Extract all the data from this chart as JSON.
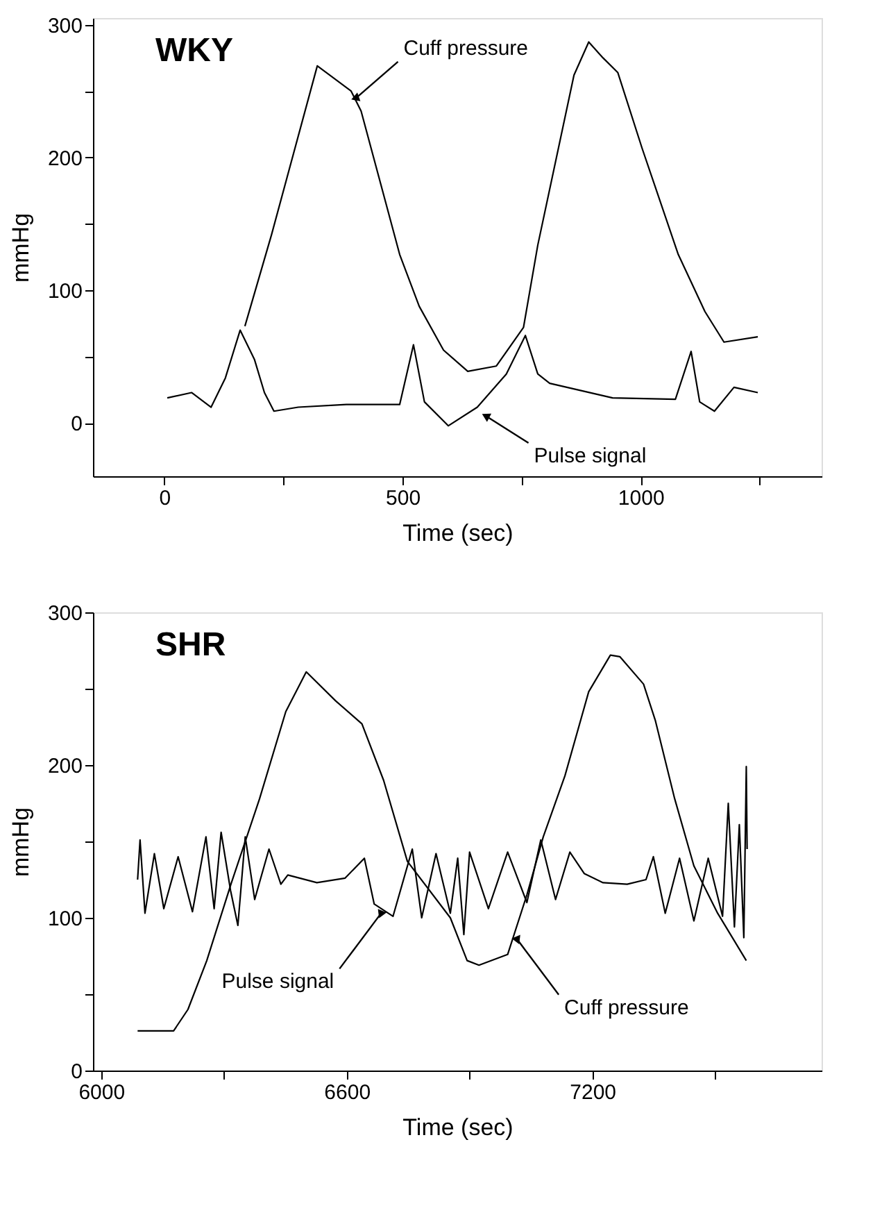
{
  "chart_data": [
    {
      "type": "line",
      "title": "WKY",
      "xlabel": "Time (sec)",
      "ylabel": "mmHg",
      "xlim": [
        -150,
        1380
      ],
      "ylim": [
        -40,
        305
      ],
      "xticks": [
        0,
        {
          "value": 250,
          "label": null
        },
        500,
        {
          "value": 750,
          "label": null
        },
        1000,
        {
          "value": 1250,
          "label": null
        }
      ],
      "yticks": [
        0,
        {
          "value": 50,
          "label": null
        },
        100,
        {
          "value": 150,
          "label": null
        },
        200,
        {
          "value": 250,
          "label": null
        },
        300
      ],
      "series": [
        {
          "color": "#000000",
          "x": [
            169,
            225,
            321,
            392,
            413,
            494,
            535,
            586,
            637,
            697,
            754,
            784,
            860,
            891,
            921,
            952,
            1003,
            1079,
            1135,
            1175,
            1246
          ],
          "values": [
            73,
            142,
            269,
            250,
            235,
            127,
            88,
            55,
            39,
            43,
            72,
            134,
            262,
            287,
            275,
            264,
            207,
            127,
            84,
            61,
            65
          ]
        },
        {
          "color": "#000000",
          "x": [
            6,
            57,
            98,
            128,
            159,
            189,
            210,
            230,
            281,
            382,
            494,
            523,
            546,
            596,
            657,
            718,
            758,
            784,
            809,
            941,
            1073,
            1106,
            1124,
            1155,
            1196,
            1246
          ],
          "values": [
            19,
            23,
            12,
            34,
            70,
            48,
            23,
            9,
            12,
            14,
            14,
            59,
            16,
            -2,
            12,
            37,
            66,
            37,
            30,
            19,
            18,
            54,
            16,
            9,
            27,
            23
          ]
        }
      ],
      "annotations": [
        {
          "text": "Cuff pressure",
          "x": 403,
          "y": 245
        },
        {
          "text": "Pulse signal",
          "x": 677,
          "y": 5
        }
      ]
    },
    {
      "type": "line",
      "title": "SHR",
      "xlabel": "Time (sec)",
      "ylabel": "mmHg",
      "xlim": [
        5980,
        7760
      ],
      "ylim": [
        0,
        300
      ],
      "xticks": [
        6000,
        {
          "value": 6300,
          "label": null
        },
        6600,
        {
          "value": 6900,
          "label": null
        },
        7200,
        {
          "value": 7500,
          "label": null
        }
      ],
      "yticks": [
        0,
        {
          "value": 50,
          "label": null
        },
        100,
        {
          "value": 150,
          "label": null
        },
        200,
        {
          "value": 250,
          "label": null
        },
        300
      ],
      "series": [
        {
          "color": "#000000",
          "x": [
            6089,
            6177,
            6212,
            6258,
            6317,
            6387,
            6451,
            6501,
            6573,
            6637,
            6690,
            6748,
            6853,
            6894,
            6923,
            6993,
            7040,
            7080,
            7133,
            7191,
            7244,
            7267,
            7325,
            7354,
            7401,
            7448,
            7506,
            7576
          ],
          "values": [
            26,
            26,
            40,
            72,
            122,
            178,
            235,
            261,
            242,
            227,
            190,
            137,
            100,
            72,
            69,
            76,
            115,
            153,
            193,
            248,
            272,
            271,
            253,
            229,
            178,
            134,
            103,
            72
          ]
        },
        {
          "color": "#000000",
          "x": [
            6089,
            6095,
            6107,
            6130,
            6153,
            6188,
            6223,
            6256,
            6276,
            6293,
            6316,
            6334,
            6352,
            6375,
            6410,
            6439,
            6456,
            6527,
            6596,
            6643,
            6667,
            6713,
            6760,
            6783,
            6818,
            6853,
            6871,
            6886,
            6900,
            6946,
            6993,
            7040,
            7074,
            7110,
            7145,
            7180,
            7226,
            7285,
            7331,
            7349,
            7378,
            7413,
            7448,
            7483,
            7518,
            7532,
            7547,
            7559,
            7570,
            7576,
            7578
          ],
          "values": [
            125,
            151,
            103,
            142,
            106,
            140,
            104,
            153,
            106,
            156,
            118,
            95,
            153,
            112,
            145,
            122,
            128,
            123,
            126,
            139,
            109,
            101,
            145,
            100,
            142,
            103,
            139,
            89,
            143,
            106,
            143,
            110,
            151,
            112,
            143,
            129,
            123,
            122,
            125,
            140,
            103,
            139,
            98,
            139,
            101,
            175,
            94,
            161,
            87,
            199,
            145
          ]
        }
      ],
      "annotations": [
        {
          "text": "Pulse signal",
          "x": 6684,
          "y": 103
        },
        {
          "text": "Cuff pressure",
          "x": 7016,
          "y": 86
        }
      ]
    }
  ]
}
